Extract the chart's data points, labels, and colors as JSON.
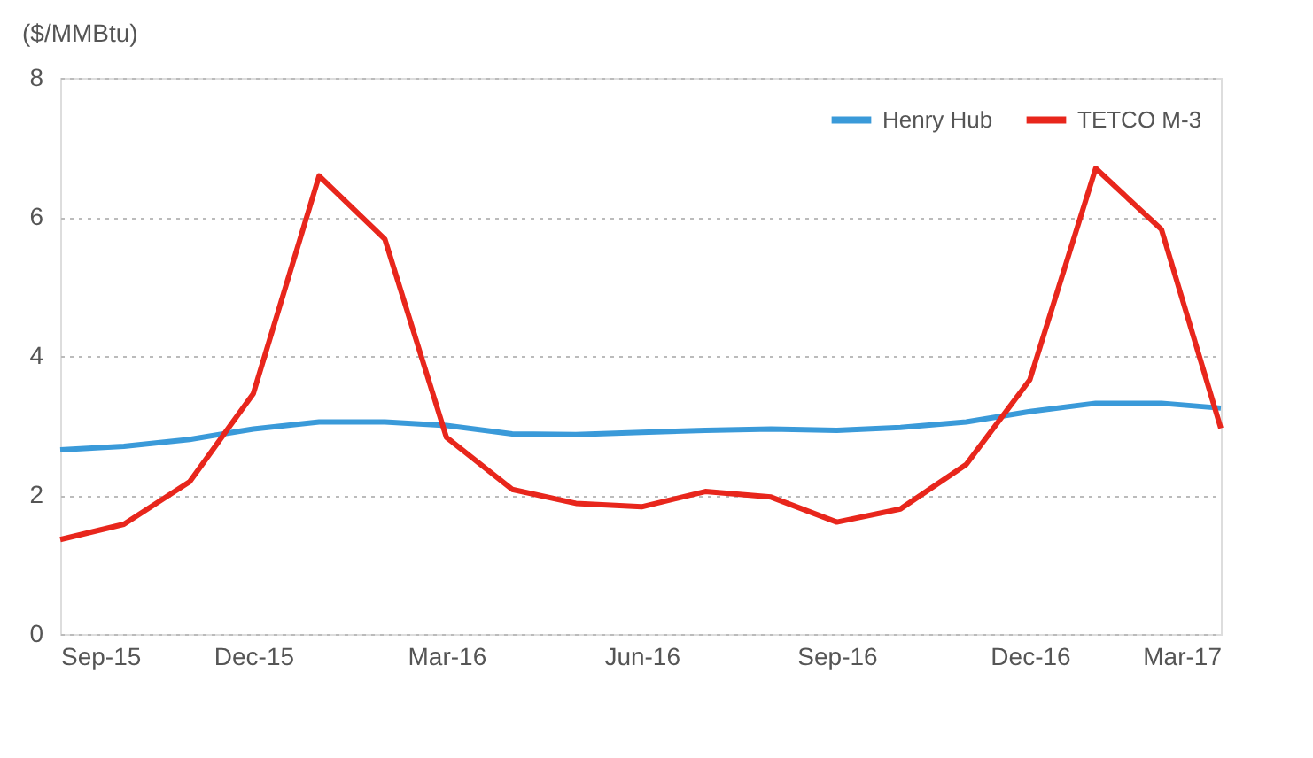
{
  "chart_data": {
    "type": "line",
    "ylabel": "($/MMBtu)",
    "x": [
      "2015-09",
      "2015-10",
      "2015-11",
      "2015-12",
      "2016-01",
      "2016-02",
      "2016-03",
      "2016-04",
      "2016-05",
      "2016-06",
      "2016-07",
      "2016-08",
      "2016-09",
      "2016-10",
      "2016-11",
      "2016-12",
      "2017-01",
      "2017-02",
      "2017-03"
    ],
    "series": [
      {
        "name": "Henry Hub",
        "color": "#3a9ad9",
        "values": [
          2.65,
          2.7,
          2.8,
          2.95,
          3.05,
          3.05,
          3.0,
          2.88,
          2.87,
          2.9,
          2.93,
          2.95,
          2.93,
          2.97,
          3.05,
          3.2,
          3.32,
          3.32,
          3.25
        ]
      },
      {
        "name": "TETCO M-3",
        "color": "#e8261c",
        "values": [
          1.36,
          1.58,
          2.19,
          3.46,
          6.59,
          5.68,
          2.83,
          2.08,
          1.88,
          1.83,
          2.05,
          1.97,
          1.61,
          1.8,
          2.44,
          3.66,
          6.7,
          5.82,
          2.96
        ]
      }
    ],
    "xlim": [
      "2015-09",
      "2017-03"
    ],
    "xticks": [
      {
        "value": "2015-09",
        "label": "Sep-15"
      },
      {
        "value": "2015-12",
        "label": "Dec-15"
      },
      {
        "value": "2016-03",
        "label": "Mar-16"
      },
      {
        "value": "2016-06",
        "label": "Jun-16"
      },
      {
        "value": "2016-09",
        "label": "Sep-16"
      },
      {
        "value": "2016-12",
        "label": "Dec-16"
      },
      {
        "value": "2017-03",
        "label": "Mar-17"
      }
    ],
    "ylim": [
      0,
      8
    ],
    "yticks": [
      0,
      2,
      4,
      6,
      8
    ],
    "grid": "y",
    "legend": "top right",
    "marker": "none",
    "line_style": "solid"
  }
}
